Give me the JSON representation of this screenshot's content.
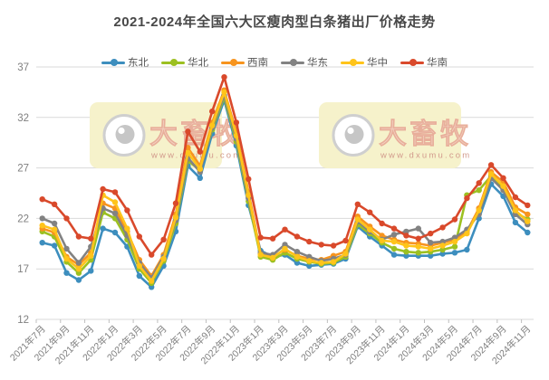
{
  "title": "2021-2024年全国六大区瘦肉型白条猪出厂价格走势",
  "watermark": {
    "brand": "大畜牧",
    "url": "www.dxumu.com"
  },
  "chart_data": {
    "type": "line",
    "title": "2021-2024年全国六大区瘦肉型白条猪出厂价格走势",
    "xlabel": "",
    "ylabel": "",
    "ylim": [
      12,
      37
    ],
    "yticks": [
      12,
      17,
      22,
      27,
      32,
      37
    ],
    "grid": "horizontal",
    "legend_position": "top",
    "x_label_step": 2,
    "categories": [
      "2021年7月",
      "2021年8月",
      "2021年9月",
      "2021年10月",
      "2021年11月",
      "2021年12月",
      "2022年1月",
      "2022年2月",
      "2022年3月",
      "2022年4月",
      "2022年5月",
      "2022年6月",
      "2022年7月",
      "2022年8月",
      "2022年9月",
      "2022年10月",
      "2022年11月",
      "2022年12月",
      "2023年1月",
      "2023年2月",
      "2023年3月",
      "2023年4月",
      "2023年5月",
      "2023年6月",
      "2023年7月",
      "2023年8月",
      "2023年9月",
      "2023年10月",
      "2023年11月",
      "2023年12月",
      "2024年1月",
      "2024年2月",
      "2024年3月",
      "2024年4月",
      "2024年5月",
      "2024年6月",
      "2024年7月",
      "2024年8月",
      "2024年9月",
      "2024年10月",
      "2024年11月"
    ],
    "series": [
      {
        "name": "东北",
        "color": "#3D8EBE",
        "values": [
          19.6,
          19.3,
          16.6,
          15.9,
          16.8,
          21.0,
          20.6,
          19.2,
          16.3,
          15.2,
          17.3,
          20.7,
          27.2,
          26.0,
          30.4,
          33.7,
          29.2,
          23.3,
          18.8,
          18.2,
          18.4,
          17.6,
          17.3,
          17.4,
          17.5,
          18.0,
          21.2,
          20.2,
          19.3,
          18.4,
          18.3,
          18.3,
          18.3,
          18.5,
          18.6,
          18.9,
          22.0,
          25.4,
          24.2,
          21.6,
          20.6
        ]
      },
      {
        "name": "华北",
        "color": "#9CC021",
        "values": [
          20.7,
          20.2,
          17.7,
          16.6,
          17.9,
          22.6,
          22.0,
          19.9,
          17.0,
          15.6,
          17.8,
          21.5,
          27.7,
          26.8,
          30.8,
          34.0,
          29.6,
          23.7,
          18.2,
          17.9,
          18.6,
          18.0,
          17.7,
          17.5,
          17.6,
          18.2,
          21.4,
          20.5,
          19.6,
          19.0,
          18.7,
          18.6,
          18.7,
          18.9,
          19.2,
          24.3,
          24.8,
          26.2,
          24.9,
          22.6,
          21.9
        ]
      },
      {
        "name": "西南",
        "color": "#F7941E",
        "values": [
          21.0,
          20.6,
          18.2,
          17.4,
          18.6,
          23.5,
          23.0,
          20.7,
          17.9,
          16.3,
          18.4,
          22.4,
          29.0,
          27.2,
          31.5,
          34.7,
          30.5,
          24.6,
          18.5,
          18.2,
          18.9,
          18.3,
          18.0,
          17.9,
          18.3,
          18.7,
          22.2,
          21.2,
          20.3,
          19.9,
          19.6,
          19.5,
          19.3,
          19.6,
          19.9,
          20.7,
          23.0,
          26.6,
          25.6,
          23.1,
          22.4
        ]
      },
      {
        "name": "华东",
        "color": "#828282",
        "values": [
          22.0,
          21.5,
          19.0,
          17.6,
          19.2,
          23.0,
          22.5,
          20.3,
          17.6,
          16.1,
          18.2,
          21.8,
          28.0,
          26.6,
          31.0,
          34.2,
          29.9,
          24.0,
          18.6,
          18.4,
          19.4,
          18.7,
          18.2,
          17.8,
          18.0,
          18.4,
          21.7,
          20.7,
          19.9,
          20.4,
          20.7,
          21.0,
          19.6,
          19.7,
          20.1,
          20.9,
          22.4,
          26.0,
          24.8,
          22.4,
          21.4
        ]
      },
      {
        "name": "华中",
        "color": "#FFC41A",
        "values": [
          21.3,
          20.9,
          18.0,
          17.0,
          18.3,
          24.3,
          23.6,
          21.0,
          17.3,
          15.8,
          18.0,
          22.1,
          28.5,
          26.9,
          31.2,
          34.5,
          30.2,
          24.3,
          18.4,
          18.1,
          19.0,
          18.2,
          17.8,
          17.6,
          17.7,
          18.5,
          21.9,
          20.9,
          19.8,
          19.7,
          19.3,
          19.2,
          19.0,
          19.3,
          19.7,
          20.5,
          22.8,
          26.4,
          25.2,
          22.8,
          21.7
        ]
      },
      {
        "name": "华南",
        "color": "#D9492B",
        "values": [
          23.9,
          23.4,
          22.0,
          20.2,
          20.0,
          24.9,
          24.6,
          22.8,
          20.2,
          18.4,
          19.9,
          23.5,
          30.6,
          28.6,
          32.6,
          36.0,
          31.5,
          25.9,
          20.1,
          20.0,
          20.9,
          20.2,
          19.7,
          19.4,
          19.3,
          19.8,
          23.4,
          22.6,
          21.5,
          21.0,
          20.3,
          20.0,
          20.5,
          21.1,
          21.9,
          24.0,
          25.5,
          27.3,
          26.0,
          24.1,
          23.3
        ]
      }
    ]
  }
}
